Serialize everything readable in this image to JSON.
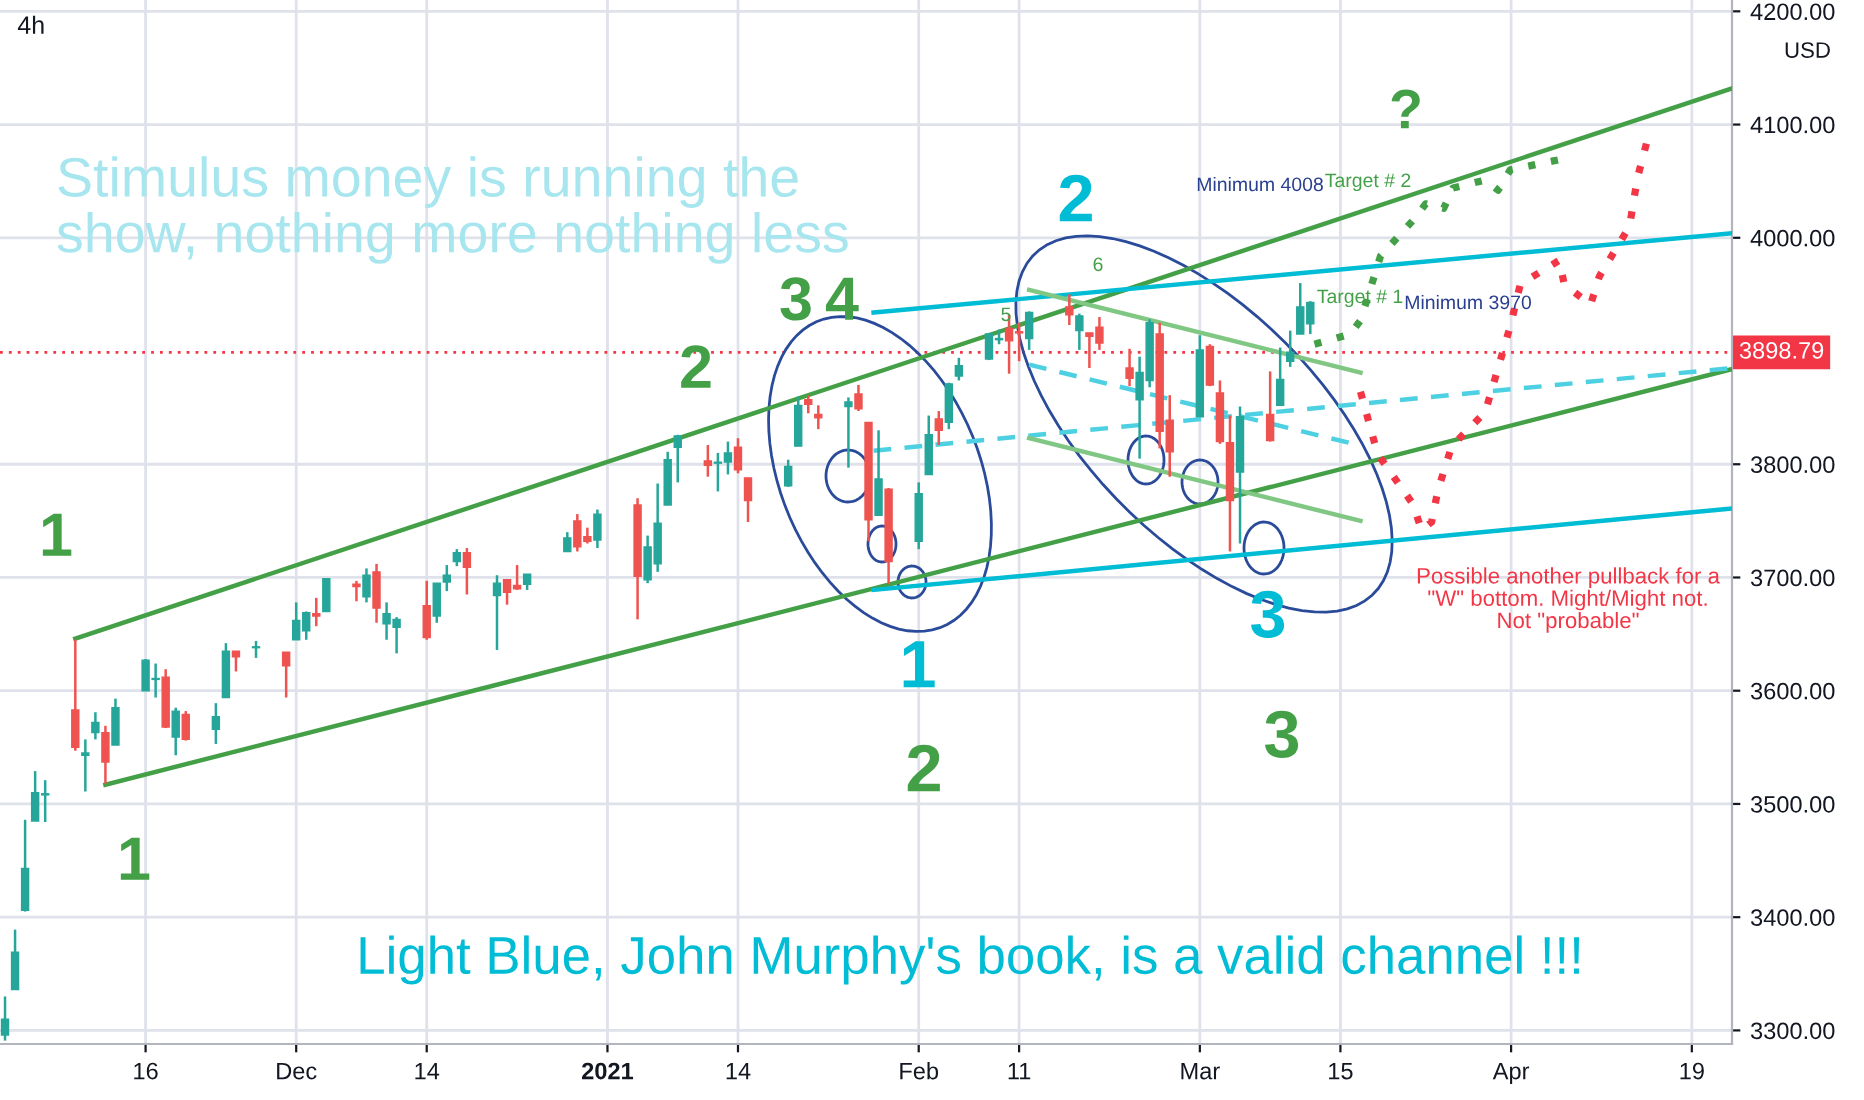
{
  "chart_data": {
    "type": "candlestick",
    "title": "4h",
    "x": [
      "2020-11-02",
      "2020-11-03",
      "2020-11-04",
      "2020-11-05",
      "2020-11-06",
      "2020-11-09",
      "2020-11-10",
      "2020-11-11",
      "2020-11-12",
      "2020-11-13",
      "2020-11-16",
      "2020-11-17",
      "2020-11-18",
      "2020-11-19",
      "2020-11-20",
      "2020-11-23",
      "2020-11-24",
      "2020-11-25",
      "2020-11-27",
      "2020-11-30",
      "2020-12-01",
      "2020-12-02",
      "2020-12-03",
      "2020-12-04",
      "2020-12-07",
      "2020-12-08",
      "2020-12-09",
      "2020-12-10",
      "2020-12-11",
      "2020-12-14",
      "2020-12-15",
      "2020-12-16",
      "2020-12-17",
      "2020-12-18",
      "2020-12-21",
      "2020-12-22",
      "2020-12-23",
      "2020-12-24",
      "2020-12-28",
      "2020-12-29",
      "2020-12-30",
      "2020-12-31",
      "2021-01-04",
      "2021-01-05",
      "2021-01-06",
      "2021-01-07",
      "2021-01-08",
      "2021-01-11",
      "2021-01-12",
      "2021-01-13",
      "2021-01-14",
      "2021-01-15",
      "2021-01-19",
      "2021-01-20",
      "2021-01-21",
      "2021-01-22",
      "2021-01-25",
      "2021-01-26",
      "2021-01-27",
      "2021-01-28",
      "2021-01-29",
      "2021-02-01",
      "2021-02-02",
      "2021-02-03",
      "2021-02-04",
      "2021-02-05",
      "2021-02-08",
      "2021-02-09",
      "2021-02-10",
      "2021-02-11",
      "2021-02-12",
      "2021-02-16",
      "2021-02-17",
      "2021-02-18",
      "2021-02-19",
      "2021-02-22",
      "2021-02-23",
      "2021-02-24",
      "2021-02-25",
      "2021-02-26",
      "2021-03-01",
      "2021-03-02",
      "2021-03-03",
      "2021-03-04",
      "2021-03-05",
      "2021-03-08",
      "2021-03-09",
      "2021-03-10",
      "2021-03-11",
      "2021-03-12"
    ],
    "ohlc": [
      [
        3296,
        3330,
        3291,
        3310
      ],
      [
        3336,
        3389,
        3336,
        3369
      ],
      [
        3406,
        3486,
        3405,
        3443
      ],
      [
        3485,
        3529,
        3485,
        3510
      ],
      [
        3508,
        3521,
        3484,
        3509
      ],
      [
        3583,
        3645,
        3547,
        3550
      ],
      [
        3543,
        3557,
        3511,
        3545
      ],
      [
        3563,
        3581,
        3557,
        3572
      ],
      [
        3563,
        3569,
        3518,
        3537
      ],
      [
        3552,
        3593,
        3552,
        3585
      ],
      [
        3600,
        3628,
        3600,
        3627
      ],
      [
        3610,
        3624,
        3594,
        3610
      ],
      [
        3612,
        3619,
        3567,
        3568
      ],
      [
        3559,
        3585,
        3543,
        3582
      ],
      [
        3579,
        3582,
        3556,
        3557
      ],
      [
        3566,
        3589,
        3553,
        3577
      ],
      [
        3594,
        3642,
        3594,
        3635
      ],
      [
        3635,
        3635,
        3617,
        3630
      ],
      [
        3638,
        3644,
        3629,
        3638
      ],
      [
        3634,
        3634,
        3594,
        3622
      ],
      [
        3645,
        3678,
        3645,
        3662
      ],
      [
        3653,
        3670,
        3645,
        3669
      ],
      [
        3668,
        3682,
        3657,
        3666
      ],
      [
        3670,
        3699,
        3670,
        3699
      ],
      [
        3694,
        3697,
        3679,
        3692
      ],
      [
        3683,
        3708,
        3678,
        3702
      ],
      [
        3705,
        3712,
        3660,
        3673
      ],
      [
        3659,
        3678,
        3645,
        3668
      ],
      [
        3656,
        3665,
        3633,
        3663
      ],
      [
        3675,
        3697,
        3645,
        3647
      ],
      [
        3666,
        3695,
        3660,
        3695
      ],
      [
        3696,
        3711,
        3688,
        3702
      ],
      [
        3714,
        3725,
        3710,
        3722
      ],
      [
        3722,
        3726,
        3685,
        3709
      ],
      [
        3684,
        3702,
        3636,
        3695
      ],
      [
        3698,
        3698,
        3676,
        3687
      ],
      [
        3693,
        3711,
        3689,
        3690
      ],
      [
        3694,
        3703,
        3689,
        3703
      ],
      [
        3723,
        3740,
        3723,
        3735
      ],
      [
        3750,
        3756,
        3723,
        3727
      ],
      [
        3736,
        3744,
        3730,
        3732
      ],
      [
        3733,
        3760,
        3726,
        3756
      ],
      [
        3764,
        3770,
        3663,
        3701
      ],
      [
        3698,
        3737,
        3695,
        3727
      ],
      [
        3712,
        3783,
        3705,
        3748
      ],
      [
        3764,
        3811,
        3764,
        3804
      ],
      [
        3815,
        3826,
        3784,
        3825
      ],
      [
        3803,
        3817,
        3789,
        3799
      ],
      [
        3801,
        3810,
        3776,
        3801
      ],
      [
        3802,
        3820,
        3791,
        3810
      ],
      [
        3815,
        3823,
        3792,
        3795
      ],
      [
        3788,
        3788,
        3749,
        3768
      ],
      [
        3781,
        3804,
        3780,
        3798
      ],
      [
        3816,
        3860,
        3816,
        3852
      ],
      [
        3857,
        3861,
        3845,
        3853
      ],
      [
        3844,
        3852,
        3831,
        3841
      ],
      [
        3851,
        3859,
        3797,
        3855
      ],
      [
        3862,
        3870,
        3847,
        3849
      ],
      [
        3837,
        3837,
        3732,
        3751
      ],
      [
        3755,
        3830,
        3755,
        3787
      ],
      [
        3778,
        3779,
        3694,
        3714
      ],
      [
        3732,
        3784,
        3725,
        3774
      ],
      [
        3791,
        3843,
        3791,
        3826
      ],
      [
        3840,
        3847,
        3817,
        3830
      ],
      [
        3837,
        3872,
        3831,
        3871
      ],
      [
        3878,
        3894,
        3874,
        3887
      ],
      [
        3893,
        3916,
        3892,
        3915
      ],
      [
        3910,
        3919,
        3906,
        3911
      ],
      [
        3920,
        3932,
        3880,
        3909
      ],
      [
        3917,
        3925,
        3891,
        3916
      ],
      [
        3911,
        3935,
        3901,
        3934
      ],
      [
        3939,
        3950,
        3923,
        3932
      ],
      [
        3918,
        3933,
        3901,
        3931
      ],
      [
        3916,
        3916,
        3885,
        3913
      ],
      [
        3921,
        3930,
        3901,
        3907
      ],
      [
        3885,
        3902,
        3869,
        3876
      ],
      [
        3857,
        3895,
        3805,
        3881
      ],
      [
        3874,
        3928,
        3868,
        3925
      ],
      [
        3915,
        3925,
        3814,
        3829
      ],
      [
        3839,
        3861,
        3789,
        3811
      ],
      [
        3842,
        3914,
        3842,
        3901
      ],
      [
        3904,
        3906,
        3869,
        3870
      ],
      [
        3863,
        3874,
        3818,
        3820
      ],
      [
        3819,
        3843,
        3723,
        3768
      ],
      [
        3793,
        3851,
        3730,
        3842
      ],
      [
        3844,
        3882,
        3820,
        3821
      ],
      [
        3852,
        3903,
        3852,
        3875
      ],
      [
        3891,
        3918,
        3886,
        3899
      ],
      [
        3915,
        3960,
        3915,
        3939
      ],
      [
        3924,
        3944,
        3915,
        3943
      ]
    ],
    "colors": [
      "#26a69a",
      "#26a69a",
      "#26a69a",
      "#26a69a",
      "#26a69a",
      "#ef5350",
      "#26a69a",
      "#26a69a",
      "#ef5350",
      "#26a69a",
      "#26a69a",
      "#26a69a",
      "#ef5350",
      "#26a69a",
      "#ef5350",
      "#26a69a",
      "#26a69a",
      "#ef5350",
      "#26a69a",
      "#ef5350",
      "#26a69a",
      "#26a69a",
      "#ef5350",
      "#26a69a",
      "#ef5350",
      "#26a69a",
      "#ef5350",
      "#26a69a",
      "#26a69a",
      "#ef5350",
      "#26a69a",
      "#26a69a",
      "#26a69a",
      "#ef5350",
      "#26a69a",
      "#ef5350",
      "#ef5350",
      "#26a69a",
      "#26a69a",
      "#ef5350",
      "#ef5350",
      "#26a69a",
      "#ef5350",
      "#26a69a",
      "#26a69a",
      "#26a69a",
      "#26a69a",
      "#ef5350",
      "#26a69a",
      "#26a69a",
      "#ef5350",
      "#ef5350",
      "#26a69a",
      "#26a69a",
      "#ef5350",
      "#ef5350",
      "#26a69a",
      "#ef5350",
      "#ef5350",
      "#26a69a",
      "#ef5350",
      "#26a69a",
      "#26a69a",
      "#ef5350",
      "#26a69a",
      "#26a69a",
      "#26a69a",
      "#26a69a",
      "#ef5350",
      "#ef5350",
      "#26a69a",
      "#ef5350",
      "#26a69a",
      "#ef5350",
      "#ef5350",
      "#ef5350",
      "#26a69a",
      "#26a69a",
      "#ef5350",
      "#ef5350",
      "#26a69a",
      "#ef5350",
      "#ef5350",
      "#ef5350",
      "#26a69a",
      "#ef5350",
      "#26a69a",
      "#26a69a",
      "#26a69a",
      "#26a69a"
    ],
    "series": [
      {
        "type": "line",
        "color": "#43a047",
        "line_style": "solid",
        "x": [
          "2020-11-09",
          "2021-04-23"
        ],
        "values": [
          3646,
          4132
        ]
      },
      {
        "type": "line",
        "color": "#43a047",
        "line_style": "solid",
        "x": [
          "2020-11-12",
          "2021-04-23"
        ],
        "values": [
          3517,
          3884
        ]
      },
      {
        "type": "line",
        "color": "#00bcd4",
        "line_style": "solid",
        "x": [
          "2021-01-27T12:00",
          "2021-04-23"
        ],
        "values": [
          3934,
          4004
        ]
      },
      {
        "type": "line",
        "color": "#00bcd4",
        "line_style": "solid",
        "x": [
          "2021-01-27T12:00",
          "2021-04-23"
        ],
        "values": [
          3689,
          3761
        ]
      },
      {
        "type": "line",
        "color": "#4dd0e1",
        "line_style": "dashed",
        "x": [
          "2021-01-27T12:00",
          "2021-04-23"
        ],
        "values": [
          3812,
          3885
        ]
      },
      {
        "type": "line",
        "color": "#4dd0e1",
        "line_style": "dashed",
        "x": [
          "2021-02-12",
          "2021-03-16T07:00"
        ],
        "values": [
          3888,
          3818
        ]
      },
      {
        "type": "line",
        "color": "#81c784",
        "line_style": "solid",
        "x": [
          "2021-02-12",
          "2021-03-17"
        ],
        "values": [
          3954,
          3881
        ]
      },
      {
        "type": "line",
        "color": "#81c784",
        "line_style": "solid",
        "x": [
          "2021-02-12",
          "2021-03-17"
        ],
        "values": [
          3823,
          3750
        ]
      },
      {
        "type": "line",
        "color": "#f23645",
        "line_style": "dotted",
        "x": [
          "2021-03-17",
          "2021-03-18T17:00",
          "2021-03-22T05:00",
          "2021-03-23T02:00",
          "2021-03-24T02:00",
          "2021-03-24T17:00",
          "2021-03-26T02:00",
          "2021-03-29T10:00",
          "2021-03-30T17:00",
          "2021-03-31T22:00",
          "2021-04-01T22:00",
          "2021-04-05T19:00",
          "2021-04-06T07:00",
          "2021-04-07T14:00",
          "2021-04-08T22:00",
          "2021-04-09T19:00",
          "2021-04-12T19:00",
          "2021-04-13T14:00",
          "2021-04-14T12:00"
        ],
        "values": [
          3864,
          3809,
          3765,
          3742,
          3749,
          3777,
          3816,
          3846,
          3885,
          3922,
          3959,
          3980,
          3959,
          3950,
          3941,
          3966,
          4010,
          4053,
          4084
        ]
      },
      {
        "type": "line",
        "color": "#43a047",
        "line_style": "dotted",
        "x": [
          "2021-03-12T10:00",
          "2021-03-16",
          "2021-03-17",
          "2021-03-19",
          "2021-03-22T07:00",
          "2021-03-23T12:00",
          "2021-03-25T07:00",
          "2021-03-26T05:00",
          "2021-03-29T10:00",
          "2021-03-30T17:00",
          "2021-03-31T22:00",
          "2021-04-05T19:00"
        ],
        "values": [
          3906,
          3915,
          3927,
          3984,
          4016,
          4030,
          4026,
          4044,
          4051,
          4042,
          4060,
          4069
        ]
      }
    ],
    "ref_lines": [
      {
        "axis": "y",
        "value": 3898.79,
        "label": "3898.79",
        "color": "#f23645",
        "line_style": "dotted"
      }
    ],
    "xlim": [
      "2020-11-01T12:00",
      "2021-04-23"
    ],
    "xticks": [
      {
        "value": "2020-11-16",
        "label": "16"
      },
      {
        "value": "2020-12-01",
        "label": "Dec"
      },
      {
        "value": "2020-12-14",
        "label": "14"
      },
      {
        "value": "2021-01-01",
        "label": "2021"
      },
      {
        "value": "2021-01-14",
        "label": "14"
      },
      {
        "value": "2021-02-01",
        "label": "Feb"
      },
      {
        "value": "2021-02-11",
        "label": "11"
      },
      {
        "value": "2021-03-01",
        "label": "Mar"
      },
      {
        "value": "2021-03-15",
        "label": "15"
      },
      {
        "value": "2021-04-01",
        "label": "Apr"
      },
      {
        "value": "2021-04-19",
        "label": "19"
      }
    ],
    "ylim": [
      3288,
      4210
    ],
    "yticks": [
      {
        "value": 3300,
        "label": "3300.00"
      },
      {
        "value": 3400,
        "label": "3400.00"
      },
      {
        "value": 3500,
        "label": "3500.00"
      },
      {
        "value": 3600,
        "label": "3600.00"
      },
      {
        "value": 3700,
        "label": "3700.00"
      },
      {
        "value": 3800,
        "label": "3800.00"
      },
      {
        "value": 4000,
        "label": "4000.00"
      },
      {
        "value": 4100,
        "label": "4100.00"
      },
      {
        "value": 4200,
        "label": "4200.00"
      }
    ],
    "grid": true,
    "annotations": [
      "Stimulus money is running the\nshow, nothing more nothing less",
      "Light Blue, John Murphy's book, is a valid channel !!!",
      "USD",
      "1",
      "1",
      "2",
      "3",
      "4",
      "2",
      "1",
      "2",
      "3",
      "3",
      "5",
      "6",
      "?",
      "Minimum 4008",
      "Target # 2",
      "Target # 1",
      "Minimum 3970",
      "Possible another pullback for a\n\"W\" bottom. Might/Might not.\nNot \"probable\""
    ]
  }
}
